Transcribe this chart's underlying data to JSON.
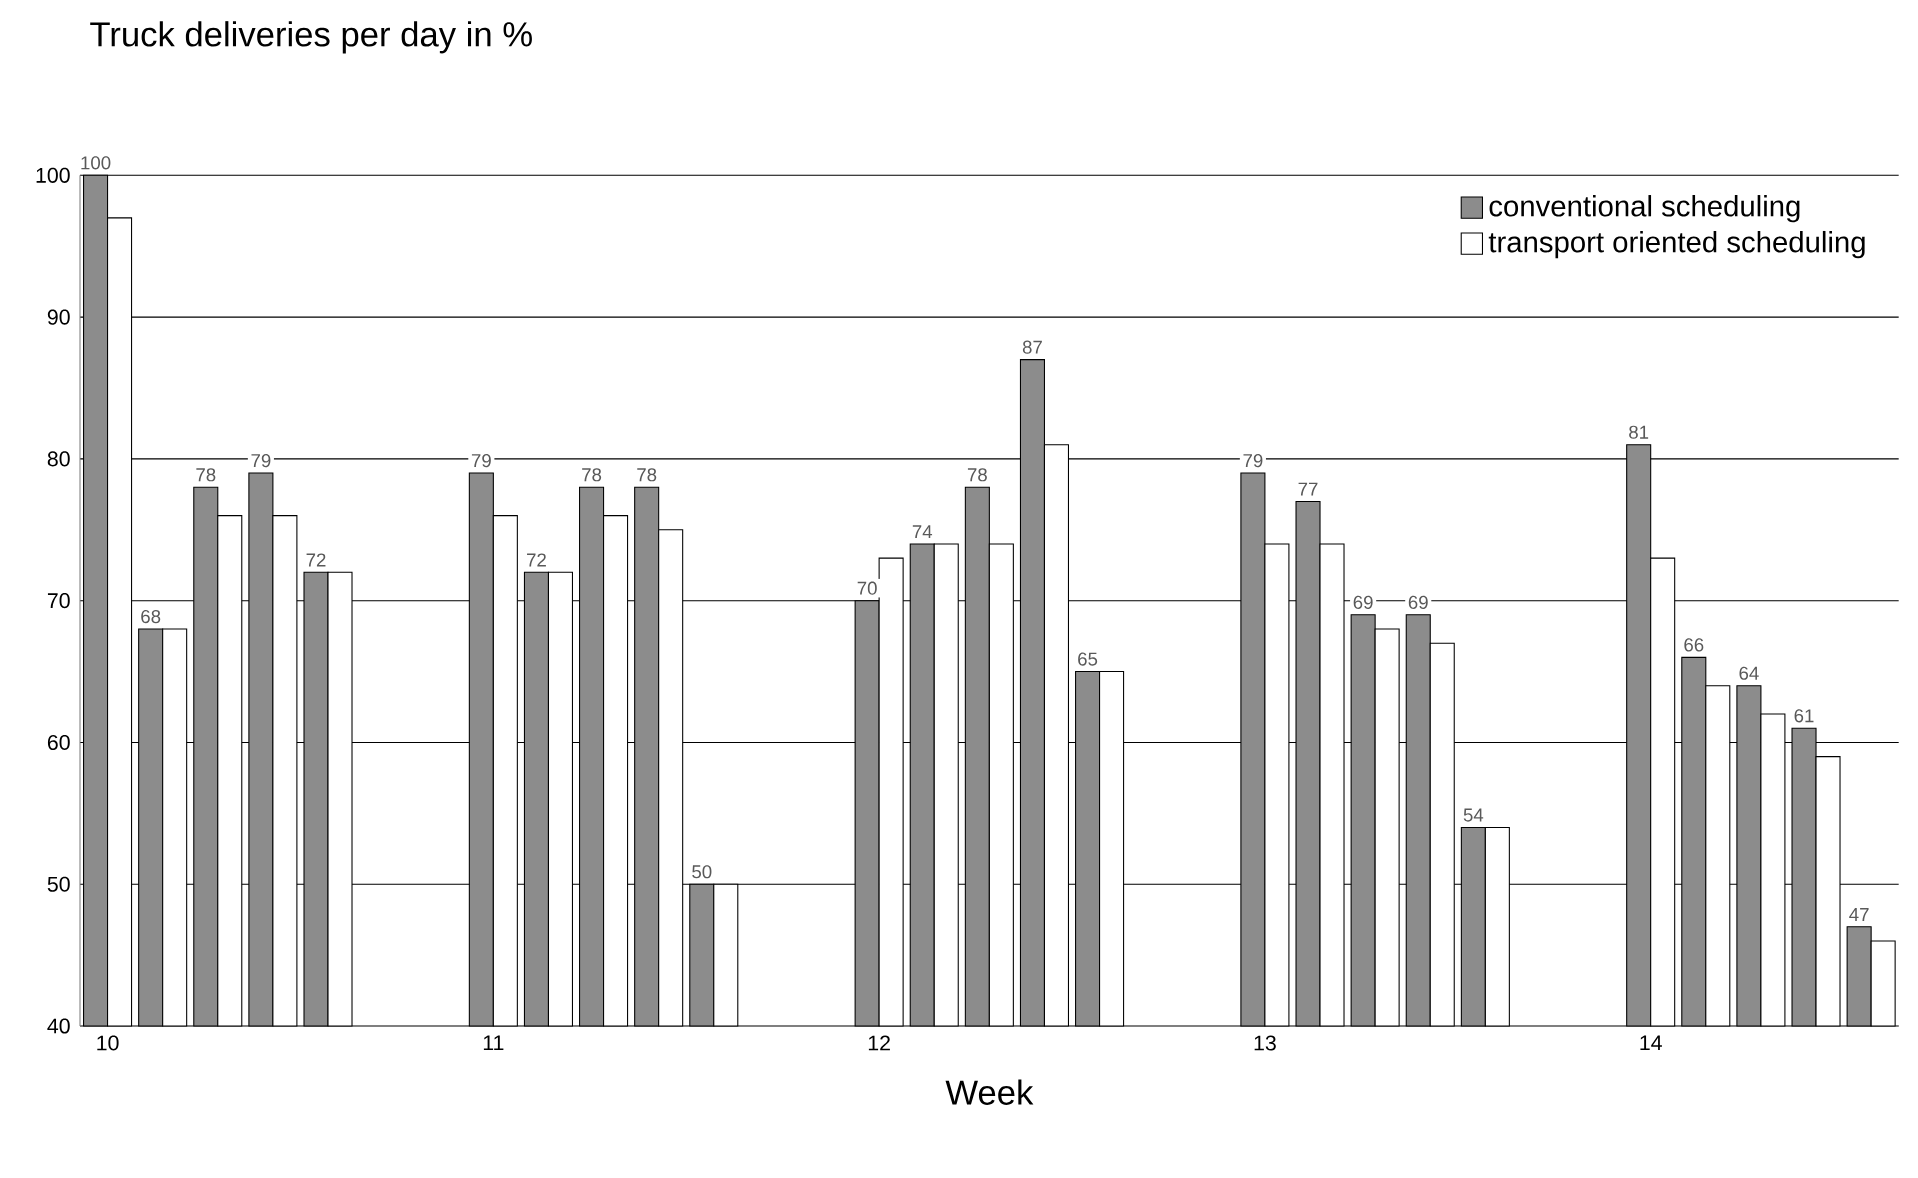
{
  "chart_data": {
    "type": "bar",
    "title": "Truck deliveries per day in %",
    "xlabel": "Week",
    "categories": [
      "10",
      null,
      null,
      null,
      null,
      null,
      null,
      "11",
      null,
      null,
      null,
      null,
      null,
      null,
      "12",
      null,
      null,
      null,
      null,
      null,
      null,
      "13",
      null,
      null,
      null,
      null,
      null,
      null,
      "14",
      null,
      null,
      null,
      null
    ],
    "series": [
      {
        "name": "conventional scheduling",
        "color": "#8c8c8c",
        "values": [
          100,
          68,
          78,
          79,
          72,
          null,
          null,
          79,
          72,
          78,
          78,
          50,
          null,
          null,
          70,
          74,
          78,
          87,
          65,
          null,
          null,
          79,
          77,
          69,
          69,
          54,
          null,
          null,
          81,
          66,
          64,
          61,
          47
        ],
        "value_labels": [
          "100",
          "68",
          "78",
          "79",
          "72",
          null,
          null,
          "79",
          "72",
          "78",
          "78",
          "50",
          null,
          null,
          "70",
          "74",
          "78",
          "87",
          "65",
          null,
          null,
          "79",
          "77",
          "69",
          "69",
          "54",
          null,
          null,
          "81",
          "66",
          "64",
          "61",
          "47"
        ]
      },
      {
        "name": "transport oriented scheduling",
        "color": "#ffffff",
        "values": [
          97,
          68,
          76,
          76,
          72,
          null,
          null,
          76,
          72,
          76,
          75,
          50,
          null,
          null,
          73,
          74,
          74,
          81,
          65,
          null,
          null,
          74,
          74,
          68,
          67,
          54,
          null,
          null,
          73,
          64,
          62,
          59,
          46
        ]
      }
    ],
    "ylim": [
      40,
      100
    ],
    "yticks": [
      40,
      50,
      60,
      70,
      80,
      90,
      100
    ],
    "grid": "y",
    "legend": "top right"
  }
}
